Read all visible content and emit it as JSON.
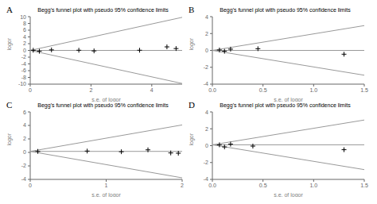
{
  "chart_data": [
    {
      "type": "scatter",
      "title": "Begg's funnel plot with pseudo 95% confidence limits",
      "xlabel": "s.e. of logor",
      "ylabel": "logor",
      "annotation": "A",
      "xlim": [
        0,
        5
      ],
      "ylim": [
        -10,
        10
      ],
      "xticks": [
        0,
        2,
        4
      ],
      "yticks": [
        -10,
        -8,
        -6,
        -4,
        -2,
        0,
        2,
        4,
        6,
        8,
        10
      ],
      "series": [
        {
          "type": "line",
          "color": "#999999",
          "x": [
            0,
            5
          ],
          "values": [
            0,
            9.8
          ]
        },
        {
          "type": "line",
          "color": "#999999",
          "x": [
            0,
            5
          ],
          "values": [
            0,
            -9.8
          ]
        },
        {
          "type": "line",
          "color": "#999999",
          "x": [
            0,
            5
          ],
          "values": [
            0.0,
            0.0
          ]
        },
        {
          "type": "scatter",
          "marker": "+",
          "color": "#000000",
          "x": [
            0.1,
            0.3,
            0.7,
            1.6,
            2.1,
            3.6,
            4.5,
            4.8
          ],
          "values": [
            0.05,
            -0.25,
            0.15,
            0.05,
            -0.15,
            0.05,
            1.05,
            0.55
          ]
        }
      ]
    },
    {
      "type": "scatter",
      "title": "Begg's funnel plot with pseudo 95% confidence limits",
      "xlabel": "s.e. of logor",
      "ylabel": "logor",
      "annotation": "B",
      "xlim": [
        0,
        1.5
      ],
      "ylim": [
        -4,
        4
      ],
      "xticks": [
        {
          "value": 0,
          "label": "0.0"
        },
        0.5,
        {
          "value": 1.0,
          "label": "1.0"
        },
        1.5
      ],
      "yticks": [
        -4,
        -2,
        0,
        2,
        4
      ],
      "series": [
        {
          "type": "line",
          "color": "#999999",
          "x": [
            0,
            1.5
          ],
          "values": [
            0,
            2.94
          ]
        },
        {
          "type": "line",
          "color": "#999999",
          "x": [
            0,
            1.5
          ],
          "values": [
            0,
            -2.94
          ]
        },
        {
          "type": "line",
          "color": "#999999",
          "x": [
            0,
            1.5
          ],
          "values": [
            0.0,
            0.0
          ]
        },
        {
          "type": "scatter",
          "marker": "+",
          "color": "#000000",
          "x": [
            0.07,
            0.12,
            0.18,
            0.45,
            1.3
          ],
          "values": [
            0.05,
            -0.1,
            0.15,
            0.2,
            -0.45
          ]
        }
      ]
    },
    {
      "type": "scatter",
      "title": "Begg's funnel plot with pseudo 95% confidence limits",
      "xlabel": "s.e. of logor",
      "ylabel": "logor",
      "annotation": "C",
      "xlim": [
        0,
        2
      ],
      "ylim": [
        -4,
        6
      ],
      "xticks": [
        0,
        1,
        2
      ],
      "yticks": [
        -4,
        -2,
        0,
        2,
        4,
        6
      ],
      "series": [
        {
          "type": "line",
          "color": "#999999",
          "x": [
            0,
            2
          ],
          "values": [
            0.15,
            4.07
          ]
        },
        {
          "type": "line",
          "color": "#999999",
          "x": [
            0,
            2
          ],
          "values": [
            0.15,
            -3.77
          ]
        },
        {
          "type": "line",
          "color": "#999999",
          "x": [
            0,
            2
          ],
          "values": [
            0.15,
            0.15
          ]
        },
        {
          "type": "scatter",
          "marker": "+",
          "color": "#000000",
          "x": [
            0.1,
            0.75,
            1.2,
            1.55,
            1.85,
            1.95
          ],
          "values": [
            0.15,
            0.2,
            0.1,
            0.38,
            -0.08,
            -0.12
          ]
        }
      ]
    },
    {
      "type": "scatter",
      "title": "Begg's funnel plot with pseudo 95% confidence limits",
      "xlabel": "s.e. of logor",
      "ylabel": "logor",
      "annotation": "D",
      "xlim": [
        0,
        1.5
      ],
      "ylim": [
        -4,
        4
      ],
      "xticks": [
        {
          "value": 0,
          "label": "0.0"
        },
        0.5,
        {
          "value": 1.0,
          "label": "1.0"
        },
        1.5
      ],
      "yticks": [
        -4,
        -2,
        0,
        2,
        4
      ],
      "series": [
        {
          "type": "line",
          "color": "#999999",
          "x": [
            0,
            1.5
          ],
          "values": [
            0.1,
            3.04
          ]
        },
        {
          "type": "line",
          "color": "#999999",
          "x": [
            0,
            1.5
          ],
          "values": [
            0.1,
            -2.84
          ]
        },
        {
          "type": "line",
          "color": "#999999",
          "x": [
            0,
            1.5
          ],
          "values": [
            0.1,
            0.1
          ]
        },
        {
          "type": "scatter",
          "marker": "+",
          "color": "#000000",
          "x": [
            0.07,
            0.12,
            0.18,
            0.4,
            1.3
          ],
          "values": [
            0.1,
            -0.15,
            0.18,
            -0.05,
            -0.48
          ]
        }
      ]
    }
  ]
}
